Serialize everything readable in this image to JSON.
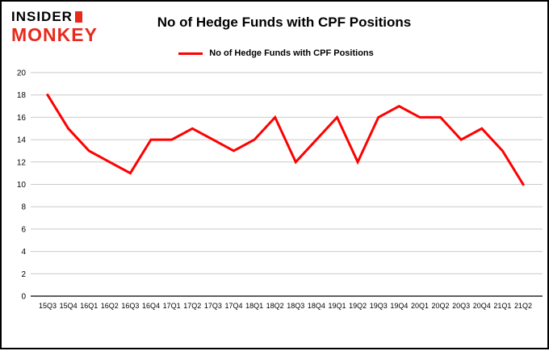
{
  "logo": {
    "line1": "INSIDER",
    "line2": "MONKEY",
    "accent_color": "#e8291c"
  },
  "header": {
    "title": "No of Hedge Funds with CPF Positions"
  },
  "legend": {
    "label": "No of Hedge Funds with CPF Positions",
    "color": "#fe0000"
  },
  "chart_data": {
    "type": "line",
    "title": "No of Hedge Funds with CPF Positions",
    "categories": [
      "15Q3",
      "15Q4",
      "16Q1",
      "16Q2",
      "16Q3",
      "16Q4",
      "17Q1",
      "17Q2",
      "17Q3",
      "17Q4",
      "18Q1",
      "18Q2",
      "18Q3",
      "18Q4",
      "19Q1",
      "19Q2",
      "19Q3",
      "19Q4",
      "20Q1",
      "20Q2",
      "20Q3",
      "20Q4",
      "21Q1",
      "21Q2"
    ],
    "values": [
      18,
      15,
      13,
      12,
      11,
      14,
      14,
      15,
      14,
      13,
      14,
      16,
      12,
      14,
      16,
      12,
      16,
      17,
      16,
      16,
      14,
      15,
      13,
      10
    ],
    "xlabel": "",
    "ylabel": "",
    "ylim": [
      0,
      20
    ],
    "ytick_step": 2,
    "grid": true,
    "gridline_color": "#c9c9c9",
    "axis_color": "#000000",
    "line_color": "#fe0000",
    "legend_position": "top"
  }
}
